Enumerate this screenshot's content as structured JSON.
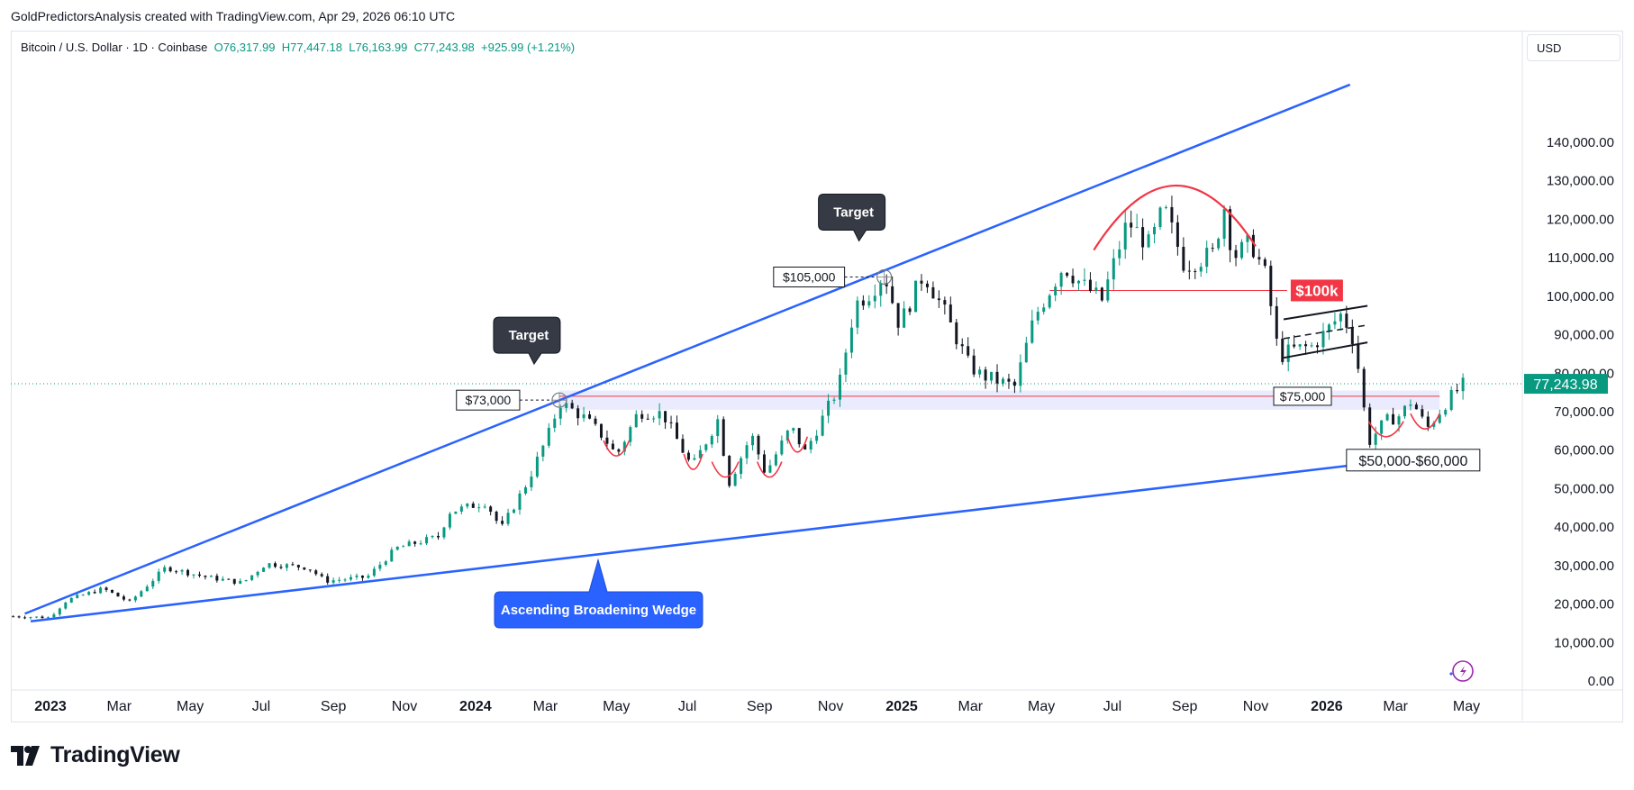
{
  "header": {
    "caption": "GoldPredictorsAnalysis created with TradingView.com, Apr 29, 2026 06:10 UTC"
  },
  "symbol": {
    "title": "Bitcoin / U.S. Dollar · 1D · Coinbase",
    "open": "O76,317.99",
    "high": "H77,447.18",
    "low": "L76,163.99",
    "close": "C77,243.98",
    "change": "+925.99 (+1.21%)"
  },
  "currency": "USD",
  "branding": {
    "logo_text": "TradingView",
    "logo_icon": "tradingview-logo-icon"
  },
  "colors": {
    "wedge": "#2962ff",
    "bull": "#089981",
    "bear": "#131722",
    "dome": "#f23645",
    "zone": "#e6e8fb"
  },
  "chart_data": {
    "type": "candlestick",
    "y_axis": {
      "ticks": [
        "140,000.00",
        "130,000.00",
        "120,000.00",
        "110,000.00",
        "100,000.00",
        "90,000.00",
        "80,000.00",
        "70,000.00",
        "60,000.00",
        "50,000.00",
        "40,000.00",
        "30,000.00",
        "20,000.00",
        "10,000.00",
        "0.00"
      ],
      "range": [
        0,
        145000
      ],
      "position": "right"
    },
    "x_axis": {
      "ticks": [
        {
          "label": "2023",
          "bold": true,
          "date": "2023-01-01"
        },
        {
          "label": "Mar",
          "bold": false,
          "date": "2023-03-01"
        },
        {
          "label": "May",
          "bold": false,
          "date": "2023-05-01"
        },
        {
          "label": "Jul",
          "bold": false,
          "date": "2023-07-01"
        },
        {
          "label": "Sep",
          "bold": false,
          "date": "2023-09-01"
        },
        {
          "label": "Nov",
          "bold": false,
          "date": "2023-11-01"
        },
        {
          "label": "2024",
          "bold": true,
          "date": "2024-01-01"
        },
        {
          "label": "Mar",
          "bold": false,
          "date": "2024-03-01"
        },
        {
          "label": "May",
          "bold": false,
          "date": "2024-05-01"
        },
        {
          "label": "Jul",
          "bold": false,
          "date": "2024-07-01"
        },
        {
          "label": "Sep",
          "bold": false,
          "date": "2024-09-01"
        },
        {
          "label": "Nov",
          "bold": false,
          "date": "2024-11-01"
        },
        {
          "label": "2025",
          "bold": true,
          "date": "2025-01-01"
        },
        {
          "label": "Mar",
          "bold": false,
          "date": "2025-03-01"
        },
        {
          "label": "May",
          "bold": false,
          "date": "2025-05-01"
        },
        {
          "label": "Jul",
          "bold": false,
          "date": "2025-07-01"
        },
        {
          "label": "Sep",
          "bold": false,
          "date": "2025-09-01"
        },
        {
          "label": "Nov",
          "bold": false,
          "date": "2025-11-01"
        },
        {
          "label": "2026",
          "bold": true,
          "date": "2026-01-01"
        },
        {
          "label": "Mar",
          "bold": false,
          "date": "2026-03-01"
        },
        {
          "label": "May",
          "bold": false,
          "date": "2026-05-01"
        }
      ],
      "range": [
        "2022-11-30",
        "2026-06-10"
      ]
    },
    "price_path": [
      [
        "2022-11-30",
        16800
      ],
      [
        "2022-12-31",
        16500
      ],
      [
        "2023-01-15",
        21000
      ],
      [
        "2023-02-15",
        24000
      ],
      [
        "2023-03-10",
        20500
      ],
      [
        "2023-04-10",
        29500
      ],
      [
        "2023-05-15",
        27000
      ],
      [
        "2023-06-15",
        25500
      ],
      [
        "2023-07-05",
        30500
      ],
      [
        "2023-08-10",
        29500
      ],
      [
        "2023-08-25",
        26000
      ],
      [
        "2023-09-30",
        27000
      ],
      [
        "2023-10-25",
        34500
      ],
      [
        "2023-11-30",
        37500
      ],
      [
        "2023-12-10",
        44000
      ],
      [
        "2024-01-10",
        46500
      ],
      [
        "2024-01-23",
        39500
      ],
      [
        "2024-02-15",
        52000
      ],
      [
        "2024-03-05",
        65000
      ],
      [
        "2024-03-13",
        72500
      ],
      [
        "2024-04-01",
        69000
      ],
      [
        "2024-04-20",
        63500
      ],
      [
        "2024-05-01",
        58500
      ],
      [
        "2024-05-20",
        70000
      ],
      [
        "2024-06-10",
        69500
      ],
      [
        "2024-06-25",
        61000
      ],
      [
        "2024-07-05",
        55500
      ],
      [
        "2024-07-28",
        68500
      ],
      [
        "2024-08-05",
        51000
      ],
      [
        "2024-08-25",
        64000
      ],
      [
        "2024-09-06",
        54000
      ],
      [
        "2024-09-28",
        66000
      ],
      [
        "2024-10-10",
        59500
      ],
      [
        "2024-10-28",
        70000
      ],
      [
        "2024-11-08",
        76500
      ],
      [
        "2024-11-22",
        98000
      ],
      [
        "2024-12-05",
        101000
      ],
      [
        "2024-12-17",
        106000
      ],
      [
        "2024-12-30",
        92500
      ],
      [
        "2025-01-20",
        106000
      ],
      [
        "2025-02-05",
        97000
      ],
      [
        "2025-02-28",
        82000
      ],
      [
        "2025-03-10",
        79500
      ],
      [
        "2025-04-08",
        76500
      ],
      [
        "2025-04-25",
        94500
      ],
      [
        "2025-05-20",
        108000
      ],
      [
        "2025-06-05",
        103000
      ],
      [
        "2025-06-22",
        99000
      ],
      [
        "2025-07-14",
        119500
      ],
      [
        "2025-08-02",
        113000
      ],
      [
        "2025-08-14",
        123000
      ],
      [
        "2025-09-01",
        108000
      ],
      [
        "2025-09-25",
        111000
      ],
      [
        "2025-10-06",
        124500
      ],
      [
        "2025-10-12",
        110000
      ],
      [
        "2025-10-28",
        114000
      ],
      [
        "2025-11-10",
        105000
      ],
      [
        "2025-11-21",
        84000
      ],
      [
        "2025-12-01",
        86000
      ],
      [
        "2025-12-20",
        87000
      ],
      [
        "2026-01-14",
        95500
      ],
      [
        "2026-01-25",
        88000
      ],
      [
        "2026-02-06",
        62000
      ],
      [
        "2026-02-20",
        67500
      ],
      [
        "2026-03-05",
        69000
      ],
      [
        "2026-03-15",
        73000
      ],
      [
        "2026-03-28",
        65500
      ],
      [
        "2026-04-15",
        73000
      ],
      [
        "2026-04-29",
        77243.98
      ]
    ],
    "last_price": {
      "value": 77243.98,
      "label": "77,243.98"
    },
    "annotations": {
      "wedge_label": "Ascending Broadening Wedge",
      "target_1": "Target",
      "target_2": "Target",
      "price_73k": "$73,000",
      "price_105k": "$105,000",
      "price_75k": "$75,000",
      "price_100k": "$100k",
      "price_range": "$50,000-$60,000"
    },
    "levels": {
      "support_zone": [
        70500,
        75500
      ],
      "line_75k": 74000,
      "line_100k": 101500
    },
    "wedge": {
      "upper": [
        [
          "2022-12-10",
          17500
        ],
        [
          "2026-01-21",
          155000
        ]
      ],
      "lower": [
        [
          "2022-12-15",
          15500
        ],
        [
          "2026-01-21",
          56000
        ]
      ]
    },
    "grid": false,
    "legend": "none"
  }
}
